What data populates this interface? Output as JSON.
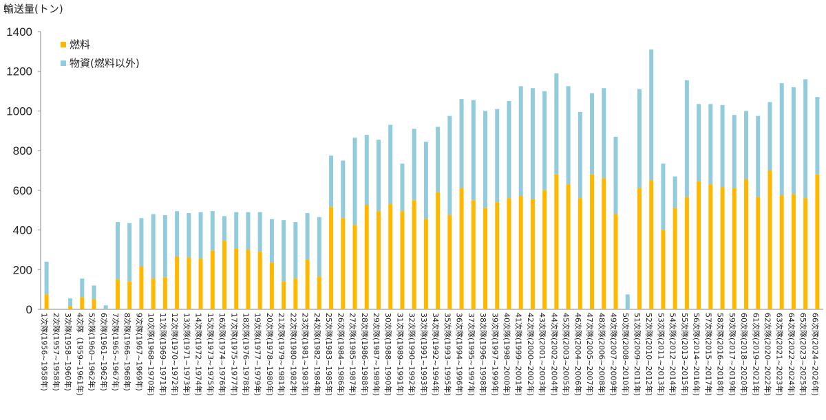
{
  "chart_data": {
    "type": "bar",
    "stacked": true,
    "title": "",
    "ylabel": "輸送量(トン)",
    "xlabel": "",
    "ylim": [
      0,
      1400
    ],
    "yticks": [
      0,
      200,
      400,
      600,
      800,
      1000,
      1200,
      1400
    ],
    "grid": false,
    "legend_position": "top-left",
    "colors": {
      "fuel": "#FFB800",
      "goods": "#92CCDC",
      "axis": "#888888"
    },
    "categories": [
      "1次隊(1956~1958年)",
      "2次隊(1957~1958年)",
      "3次隊(1958~1960年)",
      "4次隊（1959~1961年)",
      "5次隊(1960~1962年)",
      "6次隊(1961~1962年)",
      "7次隊(1965~1967年)",
      "8次隊(1966~1968年)",
      "9次隊(1967~1969年)",
      "10次隊(1968~1970年)",
      "11次隊(1969~1971年)",
      "12次隊(1970~1972年)",
      "13次隊(1971~1973年)",
      "14次隊(1972~1974年)",
      "15次隊(1973~1975年)",
      "16次隊(1974~1976年)",
      "17次隊(1975~1977年)",
      "18次隊(1976~1978年)",
      "19次隊(1977~1979年)",
      "20次隊(1978~1980年)",
      "21次隊(1979~1981年)",
      "22次隊(1980~1982年)",
      "23次隊(1981~1983年)",
      "24次隊(1982~1984年)",
      "25次隊(1983~1985年)",
      "26次隊(1984~1986年)",
      "27次隊(1985~1987年)",
      "28次隊(1986~1988年)",
      "29次隊(1987~1989年)",
      "30次隊(1988~1990年)",
      "31次隊(1989~1991年)",
      "32次隊(1990~1992年)",
      "33次隊(1991~1993年)",
      "34次隊(1992~1994年)",
      "35次隊(1993~1995年)",
      "36次隊(1994~1996年)",
      "37次隊(1995~1997年)",
      "38次隊(1996~1998年)",
      "39次隊(1997~1999年)",
      "40次隊(1998~2000年)",
      "41次隊(1999~2001年)",
      "42次隊(2000~2002年)",
      "43次隊(2001~2003年)",
      "44次隊(2002~2004年)",
      "45次隊(2003~2005年)",
      "46次隊(2004~2006年)",
      "47次隊(2005~2007年)",
      "48次隊(2006~2008年)",
      "49次隊(2007~2009年)",
      "50次隊(2008~2010年)",
      "51次隊(2009~2011年)",
      "52次隊(2010~2012年)",
      "53次隊(2011~2013年)",
      "54次隊(2012~2014年)",
      "55次隊(2013~2015年)",
      "56次隊(2014~2016年)",
      "57次隊(2015~2017年)",
      "58次隊(2016~2018年)",
      "59次隊(2017~2019年)",
      "60次隊(2018~2020年)",
      "61次隊(2019~2021年)",
      "62次隊(2020~2022年)",
      "63次隊(2021~2023年)",
      "64次隊(2022~2024年)",
      "65次隊(2023~2025年)",
      "66次隊(2024~2026年)"
    ],
    "series": [
      {
        "name": "燃料",
        "values": [
          75,
          0,
          15,
          60,
          50,
          0,
          150,
          140,
          215,
          155,
          160,
          265,
          260,
          255,
          295,
          345,
          305,
          300,
          290,
          235,
          140,
          155,
          250,
          165,
          515,
          460,
          425,
          525,
          495,
          530,
          495,
          550,
          455,
          590,
          475,
          610,
          550,
          510,
          540,
          560,
          570,
          555,
          600,
          680,
          630,
          560,
          680,
          660,
          480,
          0,
          610,
          650,
          400,
          510,
          565,
          645,
          630,
          615,
          610,
          655,
          565,
          700,
          575,
          580,
          560,
          680
        ]
      },
      {
        "name": "物資(燃料以外)",
        "values": [
          165,
          0,
          40,
          95,
          70,
          20,
          290,
          295,
          245,
          325,
          315,
          230,
          225,
          235,
          200,
          125,
          185,
          190,
          200,
          220,
          310,
          285,
          235,
          300,
          260,
          290,
          440,
          355,
          360,
          400,
          240,
          360,
          390,
          330,
          500,
          450,
          505,
          490,
          470,
          490,
          555,
          560,
          500,
          510,
          495,
          435,
          410,
          455,
          390,
          75,
          500,
          660,
          335,
          160,
          590,
          390,
          405,
          415,
          370,
          345,
          410,
          345,
          565,
          540,
          600,
          390
        ]
      }
    ]
  }
}
